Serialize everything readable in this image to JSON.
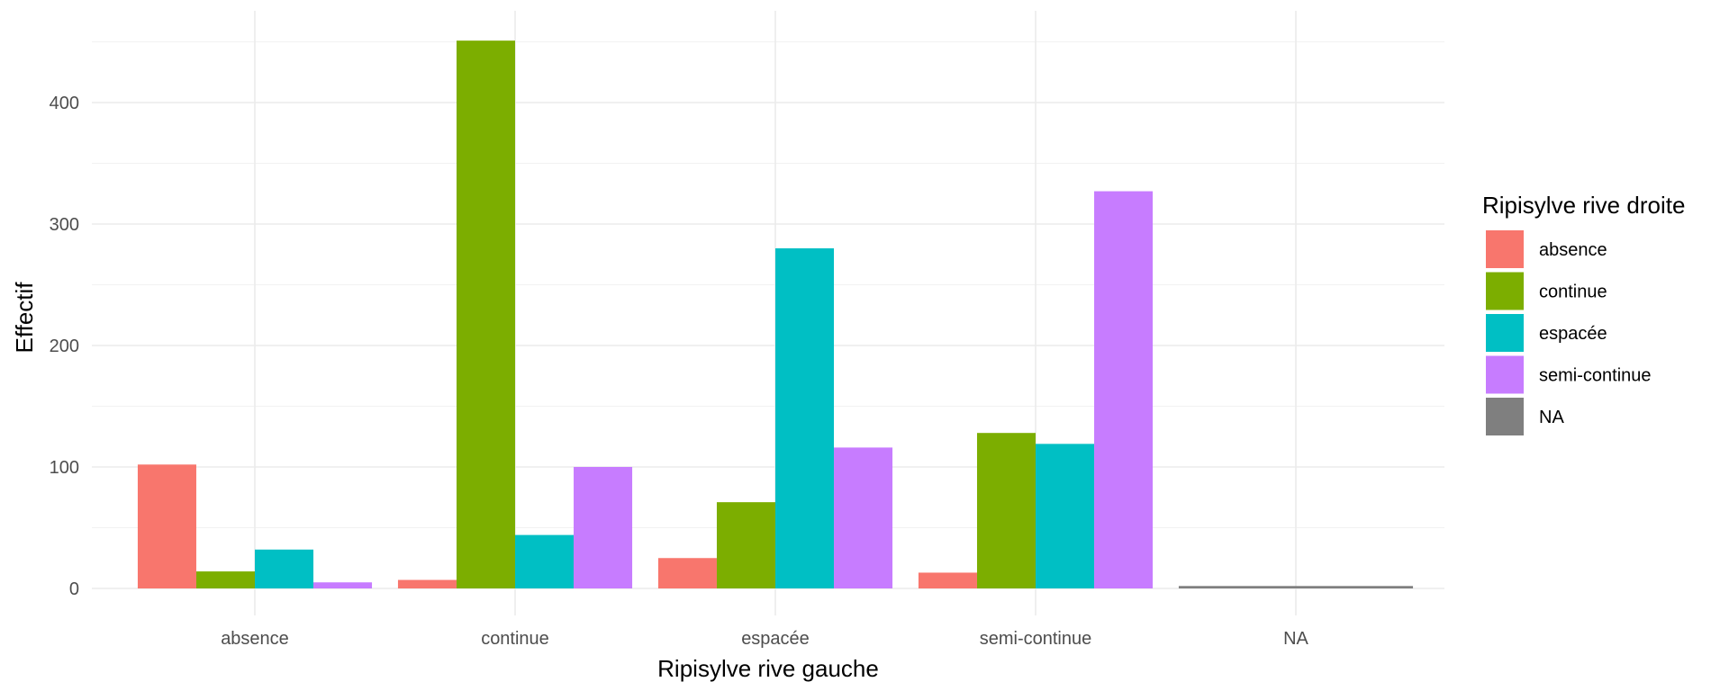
{
  "chart_data": {
    "type": "bar",
    "title": "",
    "xlabel": "Ripisylve rive gauche",
    "ylabel": "Effectif",
    "categories": [
      "absence",
      "continue",
      "espacée",
      "semi-continue",
      "NA"
    ],
    "ylim": [
      0,
      475
    ],
    "yticks": [
      0,
      100,
      200,
      300,
      400
    ],
    "grid": true,
    "legend": {
      "title": "Ripisylve rive droite",
      "position": "right"
    },
    "series": [
      {
        "name": "absence",
        "color": "#F8766D",
        "values": [
          102,
          7,
          25,
          13,
          null
        ]
      },
      {
        "name": "continue",
        "color": "#7CAE00",
        "values": [
          14,
          451,
          71,
          128,
          null
        ]
      },
      {
        "name": "espacée",
        "color": "#00BFC4",
        "values": [
          32,
          44,
          280,
          119,
          null
        ]
      },
      {
        "name": "semi-continue",
        "color": "#C77CFF",
        "values": [
          5,
          100,
          116,
          327,
          null
        ]
      },
      {
        "name": "NA",
        "color": "#7F7F7F",
        "values": [
          null,
          null,
          null,
          null,
          2
        ]
      }
    ]
  }
}
